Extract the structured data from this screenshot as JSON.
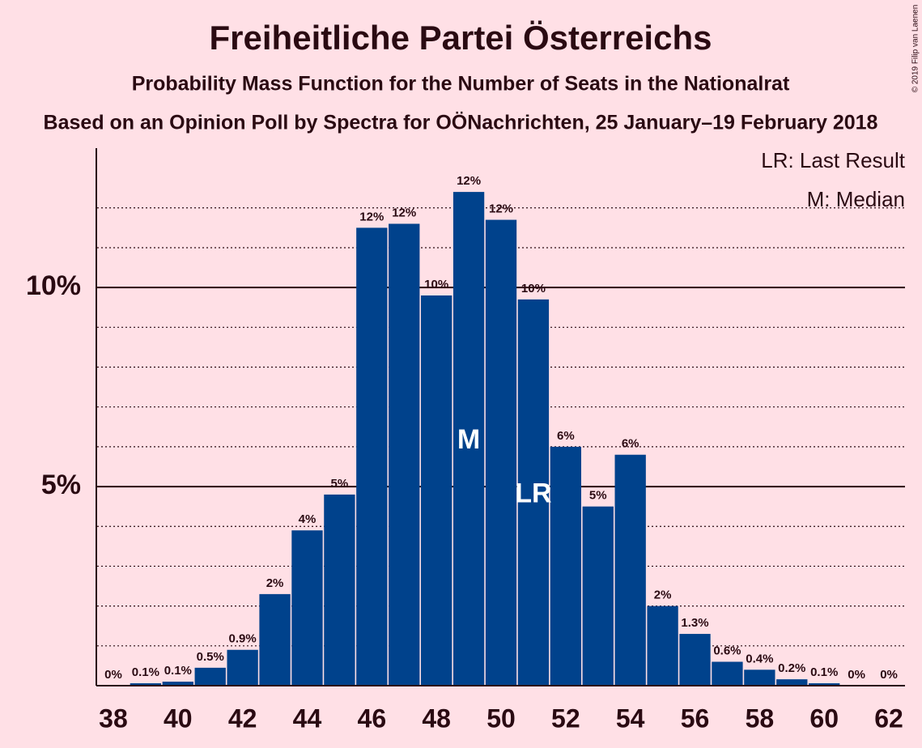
{
  "chart_data": {
    "type": "bar",
    "title": "Freiheitliche Partei Österreichs",
    "subtitle": "Probability Mass Function for the Number of Seats in the Nationalrat",
    "subtitle2": "Based on an Opinion Poll by Spectra for OÖNachrichten, 25 January–19 February 2018",
    "copyright": "© 2019 Filip van Laenen",
    "legend_notes": [
      "LR: Last Result",
      "M: Median"
    ],
    "x": [
      38,
      39,
      40,
      41,
      42,
      43,
      44,
      45,
      46,
      47,
      48,
      49,
      50,
      51,
      52,
      53,
      54,
      55,
      56,
      57,
      58,
      59,
      60,
      61,
      62
    ],
    "values": [
      0,
      0.06,
      0.1,
      0.45,
      0.9,
      2.3,
      3.9,
      4.8,
      11.5,
      11.6,
      9.8,
      12.4,
      11.7,
      9.7,
      6.0,
      4.5,
      5.8,
      2.0,
      1.3,
      0.6,
      0.4,
      0.16,
      0.06,
      0,
      0
    ],
    "value_labels": [
      "0%",
      "0.1%",
      "0.1%",
      "0.5%",
      "0.9%",
      "2%",
      "4%",
      "5%",
      "12%",
      "12%",
      "10%",
      "12%",
      "12%",
      "10%",
      "6%",
      "5%",
      "6%",
      "2%",
      "1.3%",
      "0.6%",
      "0.4%",
      "0.2%",
      "0.1%",
      "0%",
      "0%"
    ],
    "color": "#00428c",
    "annotations": [
      {
        "x": 49,
        "text": "M"
      },
      {
        "x": 51,
        "text": "LR"
      }
    ],
    "xlim": [
      37.5,
      62.5
    ],
    "xticks": [
      38,
      40,
      42,
      44,
      46,
      48,
      50,
      52,
      54,
      56,
      58,
      60,
      62
    ],
    "ylim": [
      0,
      13.5
    ],
    "yticks": [
      {
        "value": 5,
        "label": "5%"
      },
      {
        "value": 10,
        "label": "10%"
      }
    ],
    "minor_gridlines": [
      1,
      2,
      3,
      4,
      6,
      7,
      8,
      9,
      11,
      12
    ],
    "grid": true
  }
}
